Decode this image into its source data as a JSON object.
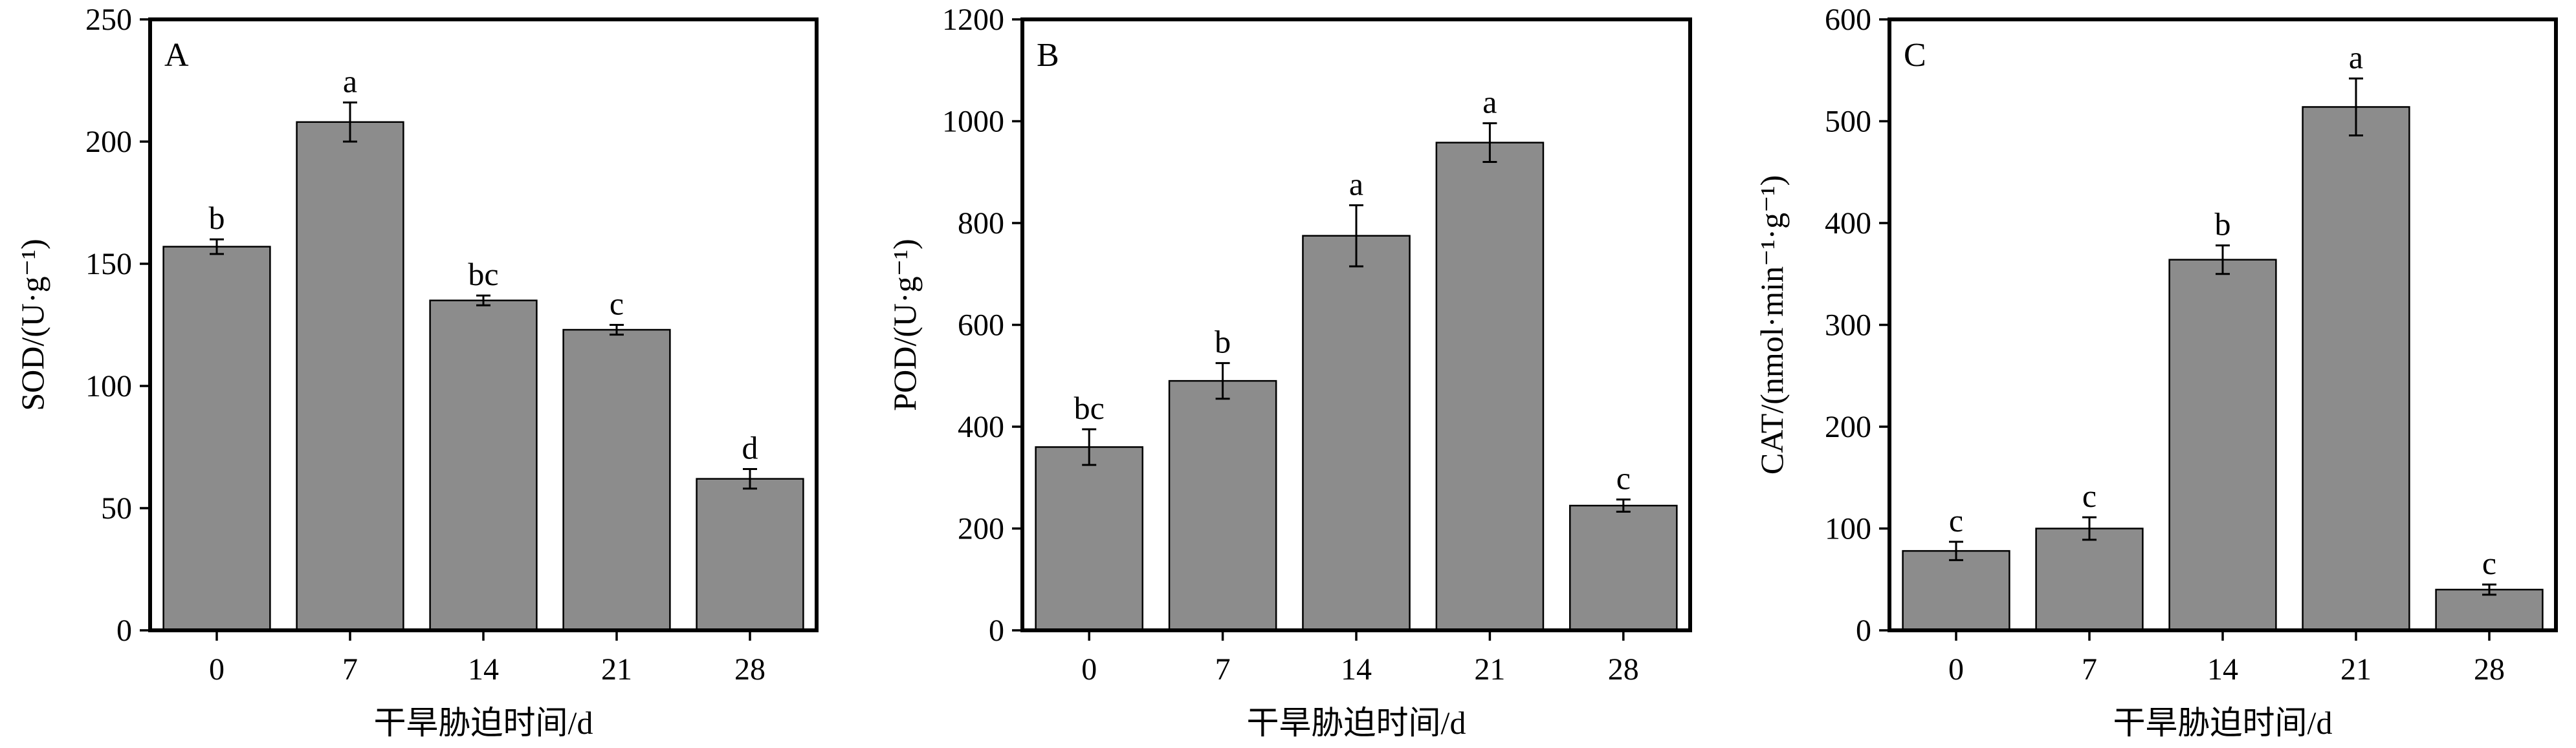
{
  "colors": {
    "bar_fill": "#8c8c8c",
    "axis": "#000000",
    "background": "#ffffff"
  },
  "chart_data": [
    {
      "type": "bar",
      "panel_letter": "A",
      "categories": [
        "0",
        "7",
        "14",
        "21",
        "28"
      ],
      "values": [
        157,
        208,
        135,
        123,
        62
      ],
      "errors": [
        3,
        8,
        2,
        2,
        4
      ],
      "significance": [
        "b",
        "a",
        "bc",
        "c",
        "d"
      ],
      "xlabel": "干旱胁迫时间/d",
      "ylabel": "SOD/(U·g⁻¹)",
      "ylim": [
        0,
        250
      ],
      "yticks": [
        0,
        50,
        100,
        150,
        200,
        250
      ],
      "grid": false,
      "legend": "none"
    },
    {
      "type": "bar",
      "panel_letter": "B",
      "categories": [
        "0",
        "7",
        "14",
        "21",
        "28"
      ],
      "values": [
        360,
        490,
        775,
        958,
        245
      ],
      "errors": [
        35,
        35,
        60,
        38,
        12
      ],
      "significance": [
        "bc",
        "b",
        "a",
        "a",
        "c"
      ],
      "xlabel": "干旱胁迫时间/d",
      "ylabel": "POD/(U·g⁻¹)",
      "ylim": [
        0,
        1200
      ],
      "yticks": [
        0,
        200,
        400,
        600,
        800,
        1000,
        1200
      ],
      "grid": false,
      "legend": "none"
    },
    {
      "type": "bar",
      "panel_letter": "C",
      "categories": [
        "0",
        "7",
        "14",
        "21",
        "28"
      ],
      "values": [
        78,
        100,
        364,
        514,
        40
      ],
      "errors": [
        9,
        11,
        14,
        28,
        5
      ],
      "significance": [
        "c",
        "c",
        "b",
        "a",
        "c"
      ],
      "xlabel": "干旱胁迫时间/d",
      "ylabel": "CAT/(nmol·min⁻¹·g⁻¹)",
      "ylim": [
        0,
        600
      ],
      "yticks": [
        0,
        100,
        200,
        300,
        400,
        500,
        600
      ],
      "grid": false,
      "legend": "none"
    }
  ]
}
